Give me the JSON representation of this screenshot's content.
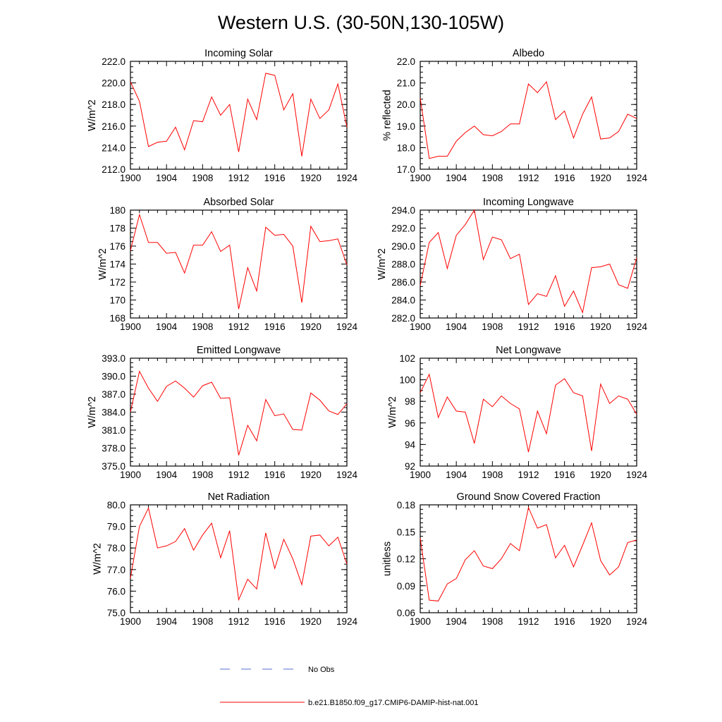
{
  "figure": {
    "title": "Western U.S. (30-50N,130-105W)"
  },
  "colors": {
    "model_line": "#ff0000",
    "obs_line": "#5a6fd6",
    "axis": "#000000"
  },
  "legend": {
    "items": [
      {
        "label": "No Obs",
        "style": "dashed",
        "color": "#5a6fd6"
      },
      {
        "label": "b.e21.B1850.f09_g17.CMIP6-DAMIP-hist-nat.001",
        "style": "solid",
        "color": "#ff0000"
      }
    ]
  },
  "chart_data": [
    {
      "type": "line",
      "title": "Incoming Solar",
      "xlabel": "",
      "ylabel": "W/m^2",
      "xlim": [
        1900,
        1924
      ],
      "ylim": [
        212,
        222
      ],
      "xticks": [
        "1900",
        "1904",
        "1908",
        "1912",
        "1916",
        "1920",
        "1924"
      ],
      "yticks": [
        "212.0",
        "214.0",
        "216.0",
        "218.0",
        "220.0",
        "222.0"
      ],
      "minor_y_step": 0.5,
      "x": [
        1900,
        1901,
        1902,
        1903,
        1904,
        1905,
        1906,
        1907,
        1908,
        1909,
        1910,
        1911,
        1912,
        1913,
        1914,
        1915,
        1916,
        1917,
        1918,
        1919,
        1920,
        1921,
        1922,
        1923,
        1924
      ],
      "series": [
        {
          "name": "b.e21.B1850.f09_g17.CMIP6-DAMIP-hist-nat.001",
          "values": [
            220.1,
            218.3,
            214.1,
            214.5,
            214.6,
            215.9,
            213.8,
            216.5,
            216.4,
            218.7,
            217.0,
            218.0,
            213.6,
            218.5,
            216.6,
            220.9,
            220.7,
            217.5,
            219.0,
            213.2,
            218.5,
            216.7,
            217.5,
            219.9,
            215.9
          ]
        }
      ]
    },
    {
      "type": "line",
      "title": "Albedo",
      "xlabel": "",
      "ylabel": "% reflected",
      "xlim": [
        1900,
        1924
      ],
      "ylim": [
        17,
        22
      ],
      "xticks": [
        "1900",
        "1904",
        "1908",
        "1912",
        "1916",
        "1920",
        "1924"
      ],
      "yticks": [
        "17.0",
        "18.0",
        "19.0",
        "20.0",
        "21.0",
        "22.0"
      ],
      "minor_y_step": 0.25,
      "x": [
        1900,
        1901,
        1902,
        1903,
        1904,
        1905,
        1906,
        1907,
        1908,
        1909,
        1910,
        1911,
        1912,
        1913,
        1914,
        1915,
        1916,
        1917,
        1918,
        1919,
        1920,
        1921,
        1922,
        1923,
        1924
      ],
      "series": [
        {
          "name": "b.e21.B1850.f09_g17.CMIP6-DAMIP-hist-nat.001",
          "values": [
            20.3,
            17.5,
            17.6,
            17.6,
            18.3,
            18.7,
            19.0,
            18.6,
            18.55,
            18.75,
            19.1,
            19.1,
            20.95,
            20.55,
            21.05,
            19.3,
            19.7,
            18.45,
            19.55,
            20.35,
            18.4,
            18.45,
            18.75,
            19.55,
            19.35
          ]
        }
      ]
    },
    {
      "type": "line",
      "title": "Absorbed Solar",
      "xlabel": "",
      "ylabel": "W/m^2",
      "xlim": [
        1900,
        1924
      ],
      "ylim": [
        168,
        180
      ],
      "xticks": [
        "1900",
        "1904",
        "1908",
        "1912",
        "1916",
        "1920",
        "1924"
      ],
      "yticks": [
        "168",
        "170",
        "172",
        "174",
        "176",
        "178",
        "180"
      ],
      "minor_y_step": 0.5,
      "x": [
        1900,
        1901,
        1902,
        1903,
        1904,
        1905,
        1906,
        1907,
        1908,
        1909,
        1910,
        1911,
        1912,
        1913,
        1914,
        1915,
        1916,
        1917,
        1918,
        1919,
        1920,
        1921,
        1922,
        1923,
        1924
      ],
      "series": [
        {
          "name": "b.e21.B1850.f09_g17.CMIP6-DAMIP-hist-nat.001",
          "values": [
            175.5,
            179.5,
            176.4,
            176.4,
            175.2,
            175.3,
            173.0,
            176.1,
            176.1,
            177.6,
            175.4,
            176.1,
            169.0,
            173.6,
            171.0,
            178.1,
            177.2,
            177.3,
            176.0,
            169.7,
            178.2,
            176.5,
            176.6,
            176.8,
            173.9
          ]
        }
      ]
    },
    {
      "type": "line",
      "title": "Incoming Longwave",
      "xlabel": "",
      "ylabel": "W/m^2",
      "xlim": [
        1900,
        1924
      ],
      "ylim": [
        282,
        294
      ],
      "xticks": [
        "1900",
        "1904",
        "1908",
        "1912",
        "1916",
        "1920",
        "1924"
      ],
      "yticks": [
        "282.0",
        "284.0",
        "286.0",
        "288.0",
        "290.0",
        "292.0",
        "294.0"
      ],
      "minor_y_step": 0.5,
      "x": [
        1900,
        1901,
        1902,
        1903,
        1904,
        1905,
        1906,
        1907,
        1908,
        1909,
        1910,
        1911,
        1912,
        1913,
        1914,
        1915,
        1916,
        1917,
        1918,
        1919,
        1920,
        1921,
        1922,
        1923,
        1924
      ],
      "series": [
        {
          "name": "b.e21.B1850.f09_g17.CMIP6-DAMIP-hist-nat.001",
          "values": [
            285.6,
            290.4,
            291.5,
            287.5,
            291.2,
            292.4,
            294.0,
            288.5,
            291.0,
            290.7,
            288.6,
            289.1,
            283.5,
            284.7,
            284.4,
            286.7,
            283.3,
            285.0,
            282.6,
            287.6,
            287.7,
            288.0,
            285.7,
            285.3,
            288.7
          ]
        }
      ]
    },
    {
      "type": "line",
      "title": "Emitted Longwave",
      "xlabel": "",
      "ylabel": "W/m^2",
      "xlim": [
        1900,
        1924
      ],
      "ylim": [
        375,
        393
      ],
      "xticks": [
        "1900",
        "1904",
        "1908",
        "1912",
        "1916",
        "1920",
        "1924"
      ],
      "yticks": [
        "375.0",
        "378.0",
        "381.0",
        "384.0",
        "387.0",
        "390.0",
        "393.0"
      ],
      "minor_y_step": 0.75,
      "x": [
        1900,
        1901,
        1902,
        1903,
        1904,
        1905,
        1906,
        1907,
        1908,
        1909,
        1910,
        1911,
        1912,
        1913,
        1914,
        1915,
        1916,
        1917,
        1918,
        1919,
        1920,
        1921,
        1922,
        1923,
        1924
      ],
      "series": [
        {
          "name": "b.e21.B1850.f09_g17.CMIP6-DAMIP-hist-nat.001",
          "values": [
            384.0,
            390.8,
            388.0,
            385.8,
            388.3,
            389.2,
            388.0,
            386.5,
            388.4,
            389.0,
            386.3,
            386.4,
            376.8,
            381.8,
            379.2,
            386.1,
            383.4,
            383.7,
            381.1,
            381.0,
            387.2,
            386.0,
            384.2,
            383.6,
            385.4
          ]
        }
      ]
    },
    {
      "type": "line",
      "title": "Net Longwave",
      "xlabel": "",
      "ylabel": "W/m^2",
      "xlim": [
        1900,
        1924
      ],
      "ylim": [
        92,
        102
      ],
      "xticks": [
        "1900",
        "1904",
        "1908",
        "1912",
        "1916",
        "1920",
        "1924"
      ],
      "yticks": [
        "92",
        "94",
        "96",
        "98",
        "100",
        "102"
      ],
      "minor_y_step": 0.5,
      "x": [
        1900,
        1901,
        1902,
        1903,
        1904,
        1905,
        1906,
        1907,
        1908,
        1909,
        1910,
        1911,
        1912,
        1913,
        1914,
        1915,
        1916,
        1917,
        1918,
        1919,
        1920,
        1921,
        1922,
        1923,
        1924
      ],
      "series": [
        {
          "name": "b.e21.B1850.f09_g17.CMIP6-DAMIP-hist-nat.001",
          "values": [
            98.8,
            100.5,
            96.5,
            98.4,
            97.1,
            97.0,
            94.1,
            98.2,
            97.5,
            98.5,
            97.8,
            97.3,
            93.3,
            97.1,
            95.0,
            99.5,
            100.1,
            98.8,
            98.5,
            93.4,
            99.6,
            97.8,
            98.5,
            98.2,
            96.8
          ]
        }
      ]
    },
    {
      "type": "line",
      "title": "Net Radiation",
      "xlabel": "",
      "ylabel": "W/m^2",
      "xlim": [
        1900,
        1924
      ],
      "ylim": [
        75,
        80
      ],
      "xticks": [
        "1900",
        "1904",
        "1908",
        "1912",
        "1916",
        "1920",
        "1924"
      ],
      "yticks": [
        "75.0",
        "76.0",
        "77.0",
        "78.0",
        "79.0",
        "80.0"
      ],
      "minor_y_step": 0.25,
      "x": [
        1900,
        1901,
        1902,
        1903,
        1904,
        1905,
        1906,
        1907,
        1908,
        1909,
        1910,
        1911,
        1912,
        1913,
        1914,
        1915,
        1916,
        1917,
        1918,
        1919,
        1920,
        1921,
        1922,
        1923,
        1924
      ],
      "series": [
        {
          "name": "b.e21.B1850.f09_g17.CMIP6-DAMIP-hist-nat.001",
          "values": [
            76.6,
            79.0,
            79.85,
            78.0,
            78.1,
            78.3,
            78.9,
            77.9,
            78.6,
            79.15,
            77.55,
            78.8,
            75.6,
            76.55,
            76.1,
            78.7,
            77.05,
            78.4,
            77.5,
            76.3,
            78.55,
            78.6,
            78.1,
            78.5,
            77.25
          ]
        }
      ]
    },
    {
      "type": "line",
      "title": "Ground Snow Covered Fraction",
      "xlabel": "",
      "ylabel": "unitless",
      "xlim": [
        1900,
        1924
      ],
      "ylim": [
        0.06,
        0.18
      ],
      "xticks": [
        "1900",
        "1904",
        "1908",
        "1912",
        "1916",
        "1920",
        "1924"
      ],
      "yticks": [
        "0.06",
        "0.09",
        "0.12",
        "0.15",
        "0.18"
      ],
      "minor_y_step": 0.005,
      "x": [
        1900,
        1901,
        1902,
        1903,
        1904,
        1905,
        1906,
        1907,
        1908,
        1909,
        1910,
        1911,
        1912,
        1913,
        1914,
        1915,
        1916,
        1917,
        1918,
        1919,
        1920,
        1921,
        1922,
        1923,
        1924
      ],
      "series": [
        {
          "name": "b.e21.B1850.f09_g17.CMIP6-DAMIP-hist-nat.001",
          "values": [
            0.143,
            0.074,
            0.073,
            0.092,
            0.098,
            0.119,
            0.129,
            0.112,
            0.109,
            0.12,
            0.137,
            0.129,
            0.177,
            0.154,
            0.158,
            0.121,
            0.135,
            0.111,
            0.135,
            0.16,
            0.118,
            0.102,
            0.111,
            0.138,
            0.141
          ]
        }
      ]
    }
  ]
}
